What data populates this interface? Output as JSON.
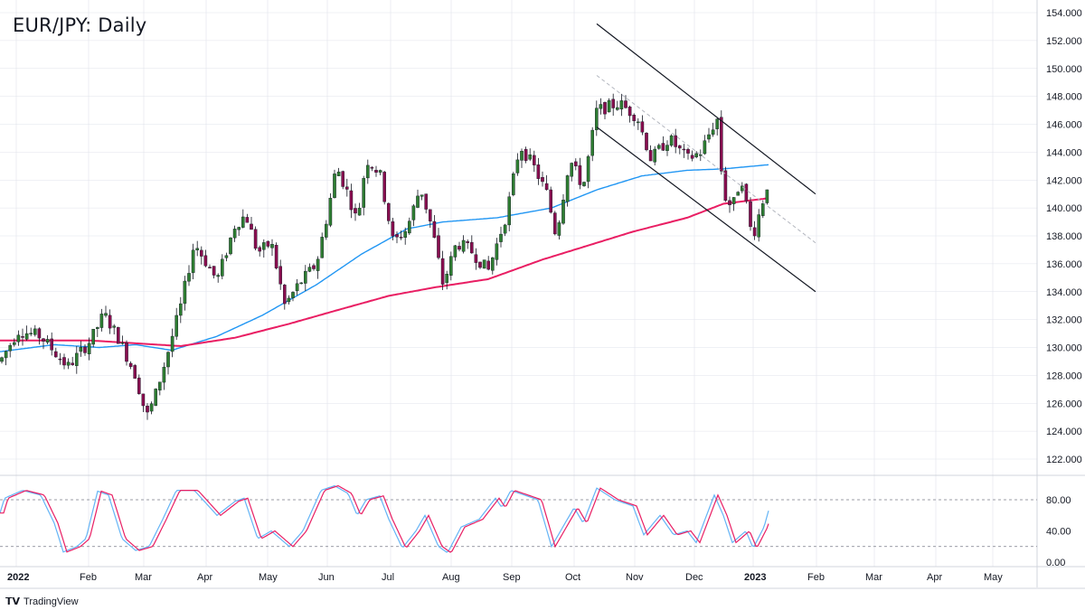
{
  "title": "EUR/JPY: Daily",
  "brand": "TradingView",
  "colors": {
    "bull": "#2e7d32",
    "bear": "#880e4f",
    "ma_fast": "#2196f3",
    "ma_slow": "#e91e63",
    "channel": "#131722",
    "midline": "#b2b5be",
    "stoch_k": "#64b5f6",
    "stoch_d": "#e91e63",
    "grid": "#e0e3eb"
  },
  "chart_data": {
    "type": "candlestick",
    "title": "EUR/JPY: Daily",
    "price_axis": {
      "ticks": [
        "154.000",
        "152.000",
        "150.000",
        "148.000",
        "146.000",
        "144.000",
        "142.000",
        "140.000",
        "138.000",
        "136.000",
        "134.000",
        "132.000",
        "130.000",
        "128.000",
        "126.000",
        "124.000",
        "122.000"
      ],
      "ylim": [
        121.0,
        154.7
      ]
    },
    "time_axis": {
      "labels": [
        "2022",
        "Feb",
        "Mar",
        "Apr",
        "May",
        "Jun",
        "Jul",
        "Aug",
        "Sep",
        "Oct",
        "Nov",
        "Dec",
        "2023",
        "Feb",
        "Mar",
        "Apr",
        "May"
      ],
      "bold_labels": [
        "2022",
        "2023"
      ]
    },
    "price_path": [
      [
        0,
        129.0
      ],
      [
        20,
        131.2
      ],
      [
        45,
        130.8
      ],
      [
        75,
        128.6
      ],
      [
        100,
        130.5
      ],
      [
        115,
        132.4
      ],
      [
        130,
        130.8
      ],
      [
        150,
        128.0
      ],
      [
        162,
        125.0
      ],
      [
        170,
        126.2
      ],
      [
        185,
        129.5
      ],
      [
        200,
        133.0
      ],
      [
        215,
        137.5
      ],
      [
        240,
        134.8
      ],
      [
        260,
        138.8
      ],
      [
        272,
        139.5
      ],
      [
        285,
        136.8
      ],
      [
        300,
        137.5
      ],
      [
        315,
        133.0
      ],
      [
        330,
        134.5
      ],
      [
        350,
        136.0
      ],
      [
        362,
        139.5
      ],
      [
        372,
        143.0
      ],
      [
        385,
        141.0
      ],
      [
        395,
        139.0
      ],
      [
        405,
        143.5
      ],
      [
        420,
        142.5
      ],
      [
        435,
        137.5
      ],
      [
        450,
        138.5
      ],
      [
        465,
        141.5
      ],
      [
        478,
        138.5
      ],
      [
        490,
        134.5
      ],
      [
        505,
        137.5
      ],
      [
        520,
        137.0
      ],
      [
        540,
        135.5
      ],
      [
        560,
        139.5
      ],
      [
        575,
        144.5
      ],
      [
        590,
        143.0
      ],
      [
        605,
        141.0
      ],
      [
        615,
        138.0
      ],
      [
        630,
        143.5
      ],
      [
        645,
        141.5
      ],
      [
        660,
        147.0
      ],
      [
        685,
        147.5
      ],
      [
        705,
        146.5
      ],
      [
        720,
        143.5
      ],
      [
        740,
        145.0
      ],
      [
        760,
        143.5
      ],
      [
        775,
        144.0
      ],
      [
        793,
        146.5
      ],
      [
        800,
        141.0
      ],
      [
        810,
        140.0
      ],
      [
        820,
        142.3
      ],
      [
        832,
        137.8
      ],
      [
        850,
        142.0
      ]
    ],
    "series": [
      {
        "name": "",
        "type": "moving_average_fast",
        "points": [
          [
            0,
            129.7
          ],
          [
            60,
            130.2
          ],
          [
            110,
            130.0
          ],
          [
            150,
            130.2
          ],
          [
            190,
            129.8
          ],
          [
            240,
            130.8
          ],
          [
            290,
            132.3
          ],
          [
            350,
            134.5
          ],
          [
            400,
            136.7
          ],
          [
            450,
            138.5
          ],
          [
            490,
            139.0
          ],
          [
            550,
            139.3
          ],
          [
            610,
            140.0
          ],
          [
            660,
            141.3
          ],
          [
            710,
            142.3
          ],
          [
            760,
            142.7
          ],
          [
            800,
            142.8
          ],
          [
            850,
            143.1
          ]
        ]
      },
      {
        "name": "",
        "type": "moving_average_slow",
        "points": [
          [
            0,
            130.5
          ],
          [
            100,
            130.5
          ],
          [
            200,
            130.1
          ],
          [
            260,
            130.7
          ],
          [
            320,
            131.7
          ],
          [
            380,
            132.8
          ],
          [
            430,
            133.7
          ],
          [
            480,
            134.3
          ],
          [
            540,
            134.9
          ],
          [
            600,
            136.3
          ],
          [
            650,
            137.3
          ],
          [
            700,
            138.3
          ],
          [
            760,
            139.3
          ],
          [
            800,
            140.3
          ],
          [
            850,
            140.7
          ]
        ]
      }
    ],
    "channel": {
      "upper": [
        [
          660,
          153.2
        ],
        [
          902,
          141.0
        ]
      ],
      "lower": [
        [
          660,
          145.8
        ],
        [
          902,
          134.0
        ]
      ],
      "mid": [
        [
          660,
          149.5
        ],
        [
          902,
          137.5
        ]
      ]
    },
    "stochastic": {
      "levels": [
        "80.00",
        "40.00",
        "0.00"
      ],
      "upper_band": 80,
      "lower_band": 20,
      "points": [
        [
          0,
          63
        ],
        [
          5,
          82
        ],
        [
          25,
          92
        ],
        [
          45,
          86
        ],
        [
          60,
          50
        ],
        [
          70,
          13
        ],
        [
          85,
          20
        ],
        [
          95,
          30
        ],
        [
          108,
          91
        ],
        [
          120,
          86
        ],
        [
          135,
          30
        ],
        [
          150,
          15
        ],
        [
          165,
          20
        ],
        [
          180,
          55
        ],
        [
          195,
          92
        ],
        [
          215,
          92
        ],
        [
          240,
          60
        ],
        [
          260,
          78
        ],
        [
          270,
          82
        ],
        [
          285,
          30
        ],
        [
          300,
          40
        ],
        [
          320,
          20
        ],
        [
          335,
          40
        ],
        [
          355,
          92
        ],
        [
          370,
          98
        ],
        [
          385,
          88
        ],
        [
          395,
          60
        ],
        [
          405,
          80
        ],
        [
          420,
          85
        ],
        [
          430,
          55
        ],
        [
          445,
          18
        ],
        [
          460,
          40
        ],
        [
          470,
          60
        ],
        [
          485,
          20
        ],
        [
          495,
          12
        ],
        [
          510,
          45
        ],
        [
          530,
          55
        ],
        [
          548,
          82
        ],
        [
          555,
          70
        ],
        [
          565,
          92
        ],
        [
          580,
          86
        ],
        [
          595,
          80
        ],
        [
          610,
          20
        ],
        [
          620,
          40
        ],
        [
          635,
          70
        ],
        [
          645,
          50
        ],
        [
          660,
          95
        ],
        [
          680,
          80
        ],
        [
          700,
          72
        ],
        [
          712,
          35
        ],
        [
          730,
          60
        ],
        [
          745,
          35
        ],
        [
          760,
          40
        ],
        [
          770,
          25
        ],
        [
          790,
          86
        ],
        [
          800,
          60
        ],
        [
          810,
          25
        ],
        [
          825,
          40
        ],
        [
          833,
          18
        ],
        [
          845,
          45
        ],
        [
          850,
          66
        ]
      ]
    }
  }
}
